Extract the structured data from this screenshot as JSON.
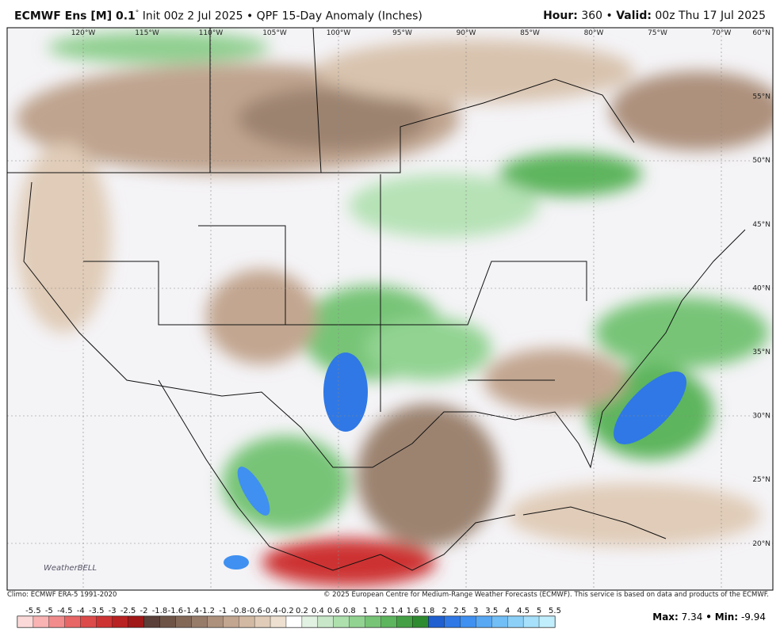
{
  "header": {
    "model": "ECMWF Ens [M] 0.1",
    "degree": "°",
    "init": " Init 00z 2 Jul 2025 • QPF 15-Day Anomaly (Inches)",
    "hour_label": "Hour:",
    "hour": " 360 • ",
    "valid_label": "Valid:",
    "valid": " 00z Thu 17 Jul 2025"
  },
  "map": {
    "longitudes": [
      "120°W",
      "115°W",
      "110°W",
      "105°W",
      "100°W",
      "95°W",
      "90°W",
      "85°W",
      "80°W",
      "75°W",
      "70°W"
    ],
    "latitudes": [
      "60°N",
      "55°N",
      "50°N",
      "45°N",
      "40°N",
      "35°N",
      "30°N",
      "25°N",
      "20°N"
    ],
    "logo": "WeatherBELL"
  },
  "footer": {
    "climo": "Climo: ECMWF ERA-5 1991-2020",
    "credit": "© 2025 European Centre for Medium-Range Weather Forecasts (ECMWF). This service is based on data and products of the ECMWF.",
    "max_label": "Max:",
    "max": "7.34",
    "separator": "•",
    "min_label": "Min:",
    "min": "-9.94"
  },
  "colorbar": {
    "ticks": [
      -5.5,
      -5,
      -4.5,
      -4,
      -3.5,
      -3,
      -2.5,
      -2,
      -1.8,
      -1.6,
      -1.4,
      -1.2,
      -1,
      -0.8,
      -0.6,
      -0.4,
      -0.2,
      0.2,
      0.4,
      0.6,
      0.8,
      1,
      1.2,
      1.4,
      1.6,
      1.8,
      2,
      2.5,
      3,
      3.5,
      4,
      4.5,
      5,
      5.5
    ],
    "colors": [
      "#fcd9d9",
      "#f9b3b3",
      "#f28c8c",
      "#e86666",
      "#dc4a4a",
      "#cd3333",
      "#b82222",
      "#a01818",
      "#5a4038",
      "#6e5446",
      "#836858",
      "#987c6a",
      "#ad917d",
      "#c2a690",
      "#d2b9a3",
      "#e0ccb8",
      "#ede0d0",
      "#ffffff",
      "#e2f2e2",
      "#c8e6c8",
      "#ade0ad",
      "#92d392",
      "#77c477",
      "#5db55d",
      "#45a045",
      "#2f8b2f",
      "#1f5fd0",
      "#2f78e6",
      "#3f90f0",
      "#58a8f4",
      "#72bef6",
      "#8cd0f8",
      "#a6e0fa",
      "#c0eefc"
    ]
  }
}
